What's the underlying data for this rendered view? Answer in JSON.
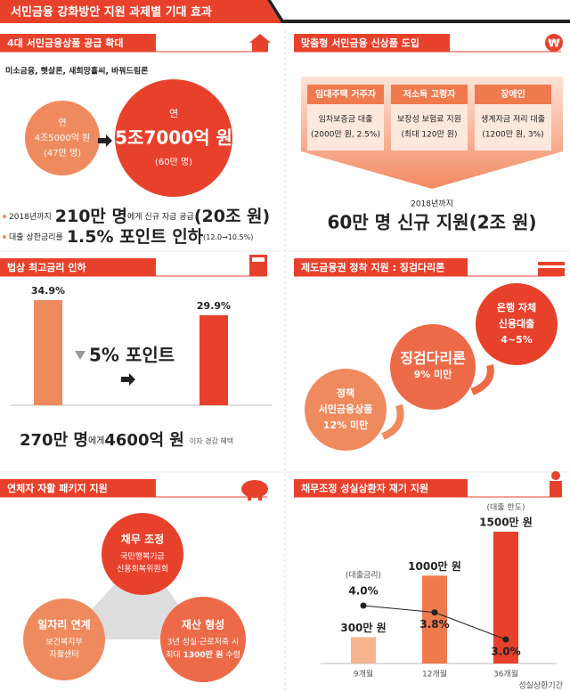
{
  "header": {
    "title": "서민금융 강화방안 지원 과제별 기대 효과"
  },
  "supply": {
    "title": "4대 서민금융상품 공급 확대",
    "products": "미소금융, 햇살론, 새희망홀씨, 바꿔드림론",
    "before": [
      "연",
      "4조5000억 원",
      "(47만 명)"
    ],
    "after": [
      "연",
      "5조7000억 원",
      "(60만 명)"
    ],
    "bullet1": [
      "2018년까지",
      "210만 명",
      "에게 신규 자금 공급",
      "(20조 원)"
    ],
    "bullet2": [
      "대출 상한금리를",
      "1.5% 포인트 인하",
      "(12.0→10.5%)"
    ]
  },
  "products": {
    "title": "맞춤형 서민금융 신상품 도입",
    "cards": [
      {
        "title": "임대주택 거주자",
        "lines": [
          "임차보증금 대출",
          "(2000만 원, 2.5%)"
        ]
      },
      {
        "title": "저소득 고령자",
        "lines": [
          "보장성 보험료 지원",
          "(최대 120만 원)"
        ]
      },
      {
        "title": "장애인",
        "lines": [
          "생계자금 저리 대출",
          "(1200만 원, 3%)"
        ]
      }
    ],
    "period": "2018년까지",
    "result": "60만 명 신규 지원(2조 원)"
  },
  "rate_cap": {
    "title": "법상 최고금리 인하",
    "type": "bar",
    "values": [
      34.9,
      29.9
    ],
    "value_labels": [
      "34.9%",
      "29.9%"
    ],
    "colors": [
      "#ef8a5e",
      "#e8412b"
    ],
    "change": "5% 포인트",
    "summary": [
      "270만 명",
      "에게",
      "4600억 원",
      "이자 경감 혜택"
    ]
  },
  "stepping": {
    "title": "제도금융권 정착 지원 : 징검다리론",
    "steps": [
      [
        "정책",
        "서민금융상품",
        "12% 미만"
      ],
      [
        "징검다리론",
        "9% 미만"
      ],
      [
        "은행 자체",
        "신용대출",
        "4~5%"
      ]
    ]
  },
  "rehab": {
    "title": "연체자 자활 패키지 지원",
    "circles": [
      {
        "title": "채무 조정",
        "lines": [
          "국민행복기금",
          "신용회복위원회"
        ]
      },
      {
        "title": "일자리 연계",
        "lines": [
          "보건복지부",
          "자활센터"
        ]
      },
      {
        "title": "재산 형성",
        "lines": [
          "3년 성실·근로저축 시"
        ],
        "parts": [
          "최대",
          "1300만 원",
          "수령"
        ]
      }
    ]
  },
  "repay": {
    "title": "채무조정 성실상환자 재기 지원",
    "type": "bar",
    "categories": [
      "9개월",
      "12개월",
      "36개월"
    ],
    "limit": {
      "label": "(대출 한도)",
      "values": [
        300,
        1000,
        1500
      ],
      "value_labels": [
        "300만 원",
        "1000만 원",
        "1500만 원"
      ],
      "colors": [
        "#f6b48f",
        "#ef7a4e",
        "#e8412b"
      ]
    },
    "rate": {
      "label": "(대출금리)",
      "values": [
        4.0,
        3.8,
        3.0
      ],
      "value_labels": [
        "4.0%",
        "3.8%",
        "3.0%"
      ],
      "color": "#222"
    },
    "x_title": "성실상환기간"
  }
}
